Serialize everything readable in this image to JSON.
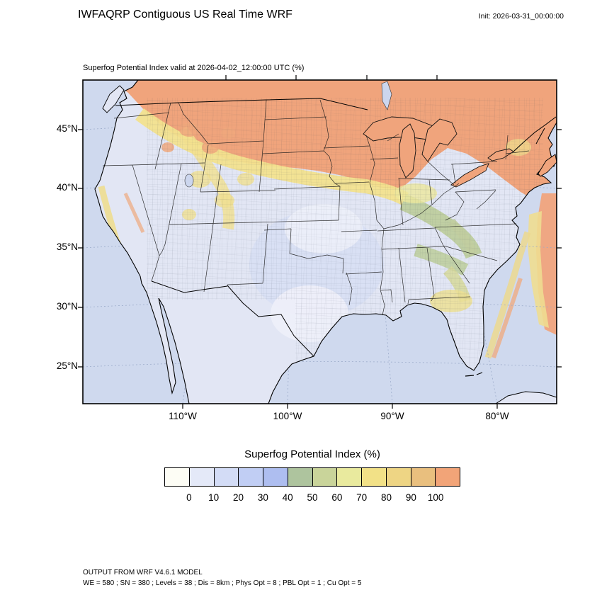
{
  "header": {
    "title": "IWFAQRP Contiguous US Real Time WRF",
    "init_label": "Init: 2026-03-31_00:00:00"
  },
  "map": {
    "subtitle": "Superfog Potential Index valid at 2026-04-02_12:00:00 UTC   (%)",
    "lat_ticks": [
      "45°N",
      "40°N",
      "35°N",
      "30°N",
      "25°N"
    ],
    "lon_ticks": [
      "110°W",
      "100°W",
      "90°W",
      "80°W"
    ],
    "colors": {
      "ocean": "#cfd9ee",
      "land_base": "#e2e6f4",
      "high": "#f0a47c",
      "yellow": "#f2e18e",
      "green": "#bccc9a",
      "pale": "#eef0f9"
    }
  },
  "colorbar": {
    "title": "Superfog Potential Index  (%)",
    "tick_labels": [
      "0",
      "10",
      "20",
      "30",
      "40",
      "50",
      "60",
      "70",
      "80",
      "90",
      "100"
    ],
    "colors": [
      "#fdfdf5",
      "#e4e9f8",
      "#d3dcf6",
      "#c1cef4",
      "#aebef0",
      "#aec49e",
      "#c9d49a",
      "#e9ea9e",
      "#f2e187",
      "#eed584",
      "#e9bf7e",
      "#f2a478"
    ]
  },
  "footer": {
    "line1": "OUTPUT FROM WRF V4.6.1 MODEL",
    "line2": "WE = 580 ; SN = 380 ; Levels = 38 ; Dis = 8km ; Phys Opt = 8 ; PBL Opt = 1 ; Cu Opt = 5"
  }
}
